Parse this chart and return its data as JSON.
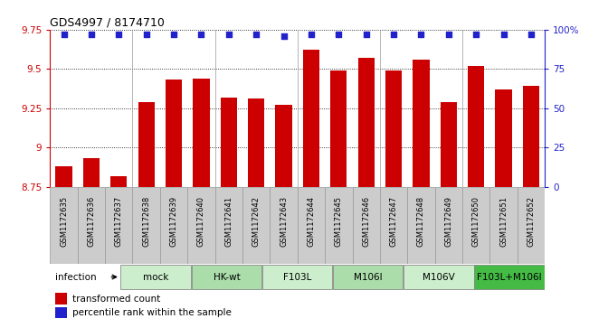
{
  "title": "GDS4997 / 8174710",
  "samples": [
    "GSM1172635",
    "GSM1172636",
    "GSM1172637",
    "GSM1172638",
    "GSM1172639",
    "GSM1172640",
    "GSM1172641",
    "GSM1172642",
    "GSM1172643",
    "GSM1172644",
    "GSM1172645",
    "GSM1172646",
    "GSM1172647",
    "GSM1172648",
    "GSM1172649",
    "GSM1172650",
    "GSM1172651",
    "GSM1172652"
  ],
  "bar_values": [
    8.88,
    8.93,
    8.82,
    9.29,
    9.43,
    9.44,
    9.32,
    9.31,
    9.27,
    9.62,
    9.49,
    9.57,
    9.49,
    9.56,
    9.29,
    9.52,
    9.37,
    9.39
  ],
  "percentile_values": [
    97,
    97,
    97,
    97,
    97,
    97,
    97,
    97,
    96,
    97,
    97,
    97,
    97,
    97,
    97,
    97,
    97,
    97
  ],
  "bar_color": "#cc0000",
  "percentile_color": "#2222cc",
  "ylim_left": [
    8.75,
    9.75
  ],
  "ylim_right": [
    0,
    100
  ],
  "yticks_left": [
    8.75,
    9.0,
    9.25,
    9.5,
    9.75
  ],
  "yticks_right": [
    0,
    25,
    50,
    75,
    100
  ],
  "ytick_labels_left": [
    "8.75",
    "9",
    "9.25",
    "9.5",
    "9.75"
  ],
  "ytick_labels_right": [
    "0",
    "25",
    "50",
    "75",
    "100%"
  ],
  "groups": [
    {
      "label": "mock",
      "start": 0,
      "end": 3,
      "color": "#cceecc"
    },
    {
      "label": "HK-wt",
      "start": 3,
      "end": 6,
      "color": "#aaddaa"
    },
    {
      "label": "F103L",
      "start": 6,
      "end": 9,
      "color": "#cceecc"
    },
    {
      "label": "M106I",
      "start": 9,
      "end": 12,
      "color": "#aaddaa"
    },
    {
      "label": "M106V",
      "start": 12,
      "end": 15,
      "color": "#cceecc"
    },
    {
      "label": "F103L+M106I",
      "start": 15,
      "end": 18,
      "color": "#44bb44"
    }
  ],
  "infection_label": "infection",
  "legend_bar_label": "transformed count",
  "legend_dot_label": "percentile rank within the sample",
  "background_color": "#ffffff",
  "bar_width": 0.6
}
